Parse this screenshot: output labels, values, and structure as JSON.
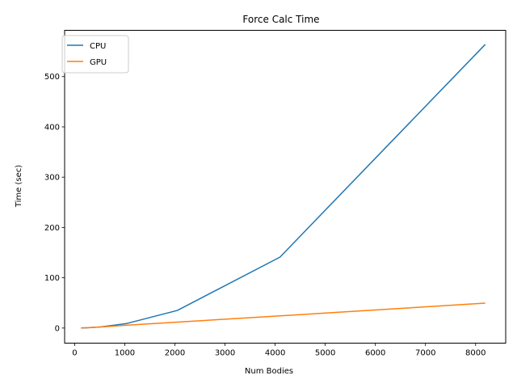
{
  "chart_data": {
    "type": "line",
    "title": "Force Calc Time",
    "xlabel": "Num Bodies",
    "ylabel": "Time (sec)",
    "xlim": [
      -200,
      8600
    ],
    "ylim": [
      -30,
      592
    ],
    "xticks": [
      0,
      1000,
      2000,
      3000,
      4000,
      5000,
      6000,
      7000,
      8000
    ],
    "yticks": [
      0,
      100,
      200,
      300,
      400,
      500
    ],
    "legend_position": "top-left",
    "grid": false,
    "series": [
      {
        "name": "CPU",
        "color": "#1f77b4",
        "x": [
          128,
          256,
          512,
          1024,
          2048,
          4096,
          8192
        ],
        "y": [
          0.1,
          0.5,
          2.2,
          8.7,
          35,
          141,
          564
        ]
      },
      {
        "name": "GPU",
        "color": "#ff7f0e",
        "x": [
          128,
          256,
          512,
          1024,
          2048,
          4096,
          8192
        ],
        "y": [
          0.3,
          0.8,
          2.1,
          5.5,
          11.8,
          24.2,
          49.5
        ]
      }
    ]
  }
}
